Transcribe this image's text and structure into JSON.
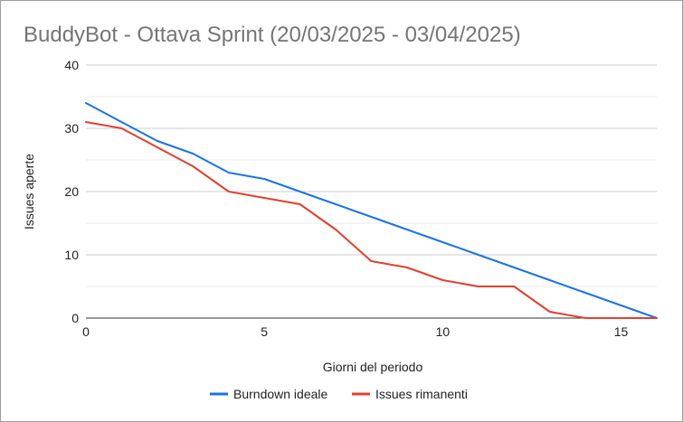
{
  "chart_data": {
    "type": "line",
    "title": "BuddyBot - Ottava Sprint (20/03/2025 - 03/04/2025)",
    "xlabel": "Giorni del periodo",
    "ylabel": "Issues aperte",
    "xlim": [
      0,
      16
    ],
    "ylim": [
      0,
      40
    ],
    "x_ticks": [
      0,
      5,
      10,
      15
    ],
    "y_ticks": [
      0,
      10,
      20,
      30,
      40
    ],
    "grid": true,
    "legend_position": "bottom",
    "x": [
      0,
      1,
      2,
      3,
      4,
      5,
      6,
      7,
      8,
      9,
      10,
      11,
      12,
      13,
      14,
      15,
      16
    ],
    "series": [
      {
        "name": "Burndown ideale",
        "color": "#1a73e8",
        "values": [
          34,
          31,
          28,
          26,
          23,
          22,
          20,
          18,
          16,
          14,
          12,
          10,
          8,
          6,
          4,
          2,
          0
        ]
      },
      {
        "name": "Issues rimanenti",
        "color": "#e53f2e",
        "values": [
          31,
          30,
          27,
          24,
          20,
          19,
          18,
          14,
          9,
          8,
          6,
          5,
          5,
          1,
          0,
          0,
          0
        ]
      }
    ]
  }
}
